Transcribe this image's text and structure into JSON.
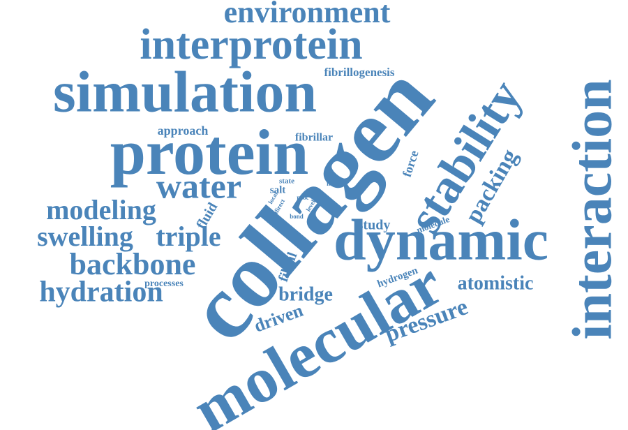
{
  "words": [
    "environment",
    "interprotein",
    "simulation",
    "fibrillogenesis",
    "collagen",
    "stability",
    "interaction",
    "protein",
    "approach",
    "fibrillar",
    "water",
    "modeling",
    "swelling",
    "triple",
    "backbone",
    "hydration",
    "processes",
    "dynamic",
    "molecular",
    "packing",
    "force",
    "fluid",
    "study",
    "molecule",
    "atomistic",
    "pressure",
    "hydrogen",
    "bridge",
    "driven",
    "fibril",
    "salt",
    "state",
    "more",
    "local",
    "direct",
    "proc",
    "level",
    "bond"
  ]
}
